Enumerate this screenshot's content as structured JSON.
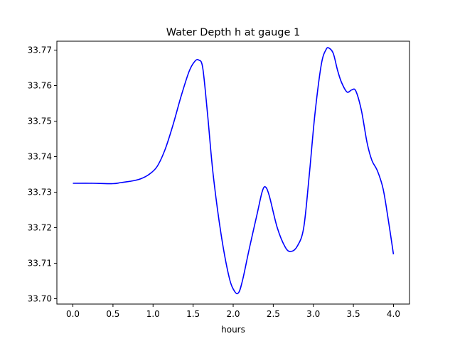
{
  "chart_data": {
    "type": "line",
    "title": "Water Depth h at gauge 1",
    "xlabel": "hours",
    "ylabel": "",
    "xlim": [
      -0.2,
      4.2
    ],
    "ylim": [
      33.6985,
      33.7725
    ],
    "xticks": [
      0.0,
      0.5,
      1.0,
      1.5,
      2.0,
      2.5,
      3.0,
      3.5,
      4.0
    ],
    "xtick_labels": [
      "0.0",
      "0.5",
      "1.0",
      "1.5",
      "2.0",
      "2.5",
      "3.0",
      "3.5",
      "4.0"
    ],
    "yticks": [
      33.7,
      33.71,
      33.72,
      33.73,
      33.74,
      33.75,
      33.76,
      33.77
    ],
    "ytick_labels": [
      "33.70",
      "33.71",
      "33.72",
      "33.73",
      "33.74",
      "33.75",
      "33.76",
      "33.77"
    ],
    "grid": false,
    "series": [
      {
        "color": "#0000ff",
        "x": [
          0.0,
          0.25,
          0.5,
          0.6,
          0.75,
          0.85,
          0.95,
          1.05,
          1.15,
          1.25,
          1.35,
          1.45,
          1.52,
          1.57,
          1.62,
          1.68,
          1.75,
          1.85,
          1.95,
          2.02,
          2.07,
          2.12,
          2.2,
          2.3,
          2.36,
          2.4,
          2.45,
          2.55,
          2.65,
          2.72,
          2.8,
          2.88,
          2.95,
          3.02,
          3.1,
          3.16,
          3.2,
          3.25,
          3.3,
          3.35,
          3.42,
          3.48,
          3.53,
          3.6,
          3.67,
          3.73,
          3.8,
          3.87,
          3.93,
          4.0
        ],
        "y": [
          33.7325,
          33.7325,
          33.7324,
          33.7327,
          33.7332,
          33.7338,
          33.735,
          33.7372,
          33.742,
          33.749,
          33.757,
          33.764,
          33.7668,
          33.7672,
          33.765,
          33.752,
          33.735,
          33.718,
          33.706,
          33.702,
          33.7018,
          33.7055,
          33.714,
          33.724,
          33.73,
          33.7315,
          33.729,
          33.72,
          33.7145,
          33.7133,
          33.7148,
          33.72,
          33.735,
          33.752,
          33.766,
          33.7702,
          33.7705,
          33.769,
          33.7645,
          33.761,
          33.7582,
          33.7588,
          33.7585,
          33.753,
          33.744,
          33.739,
          33.736,
          33.731,
          33.723,
          33.7125
        ]
      }
    ]
  }
}
